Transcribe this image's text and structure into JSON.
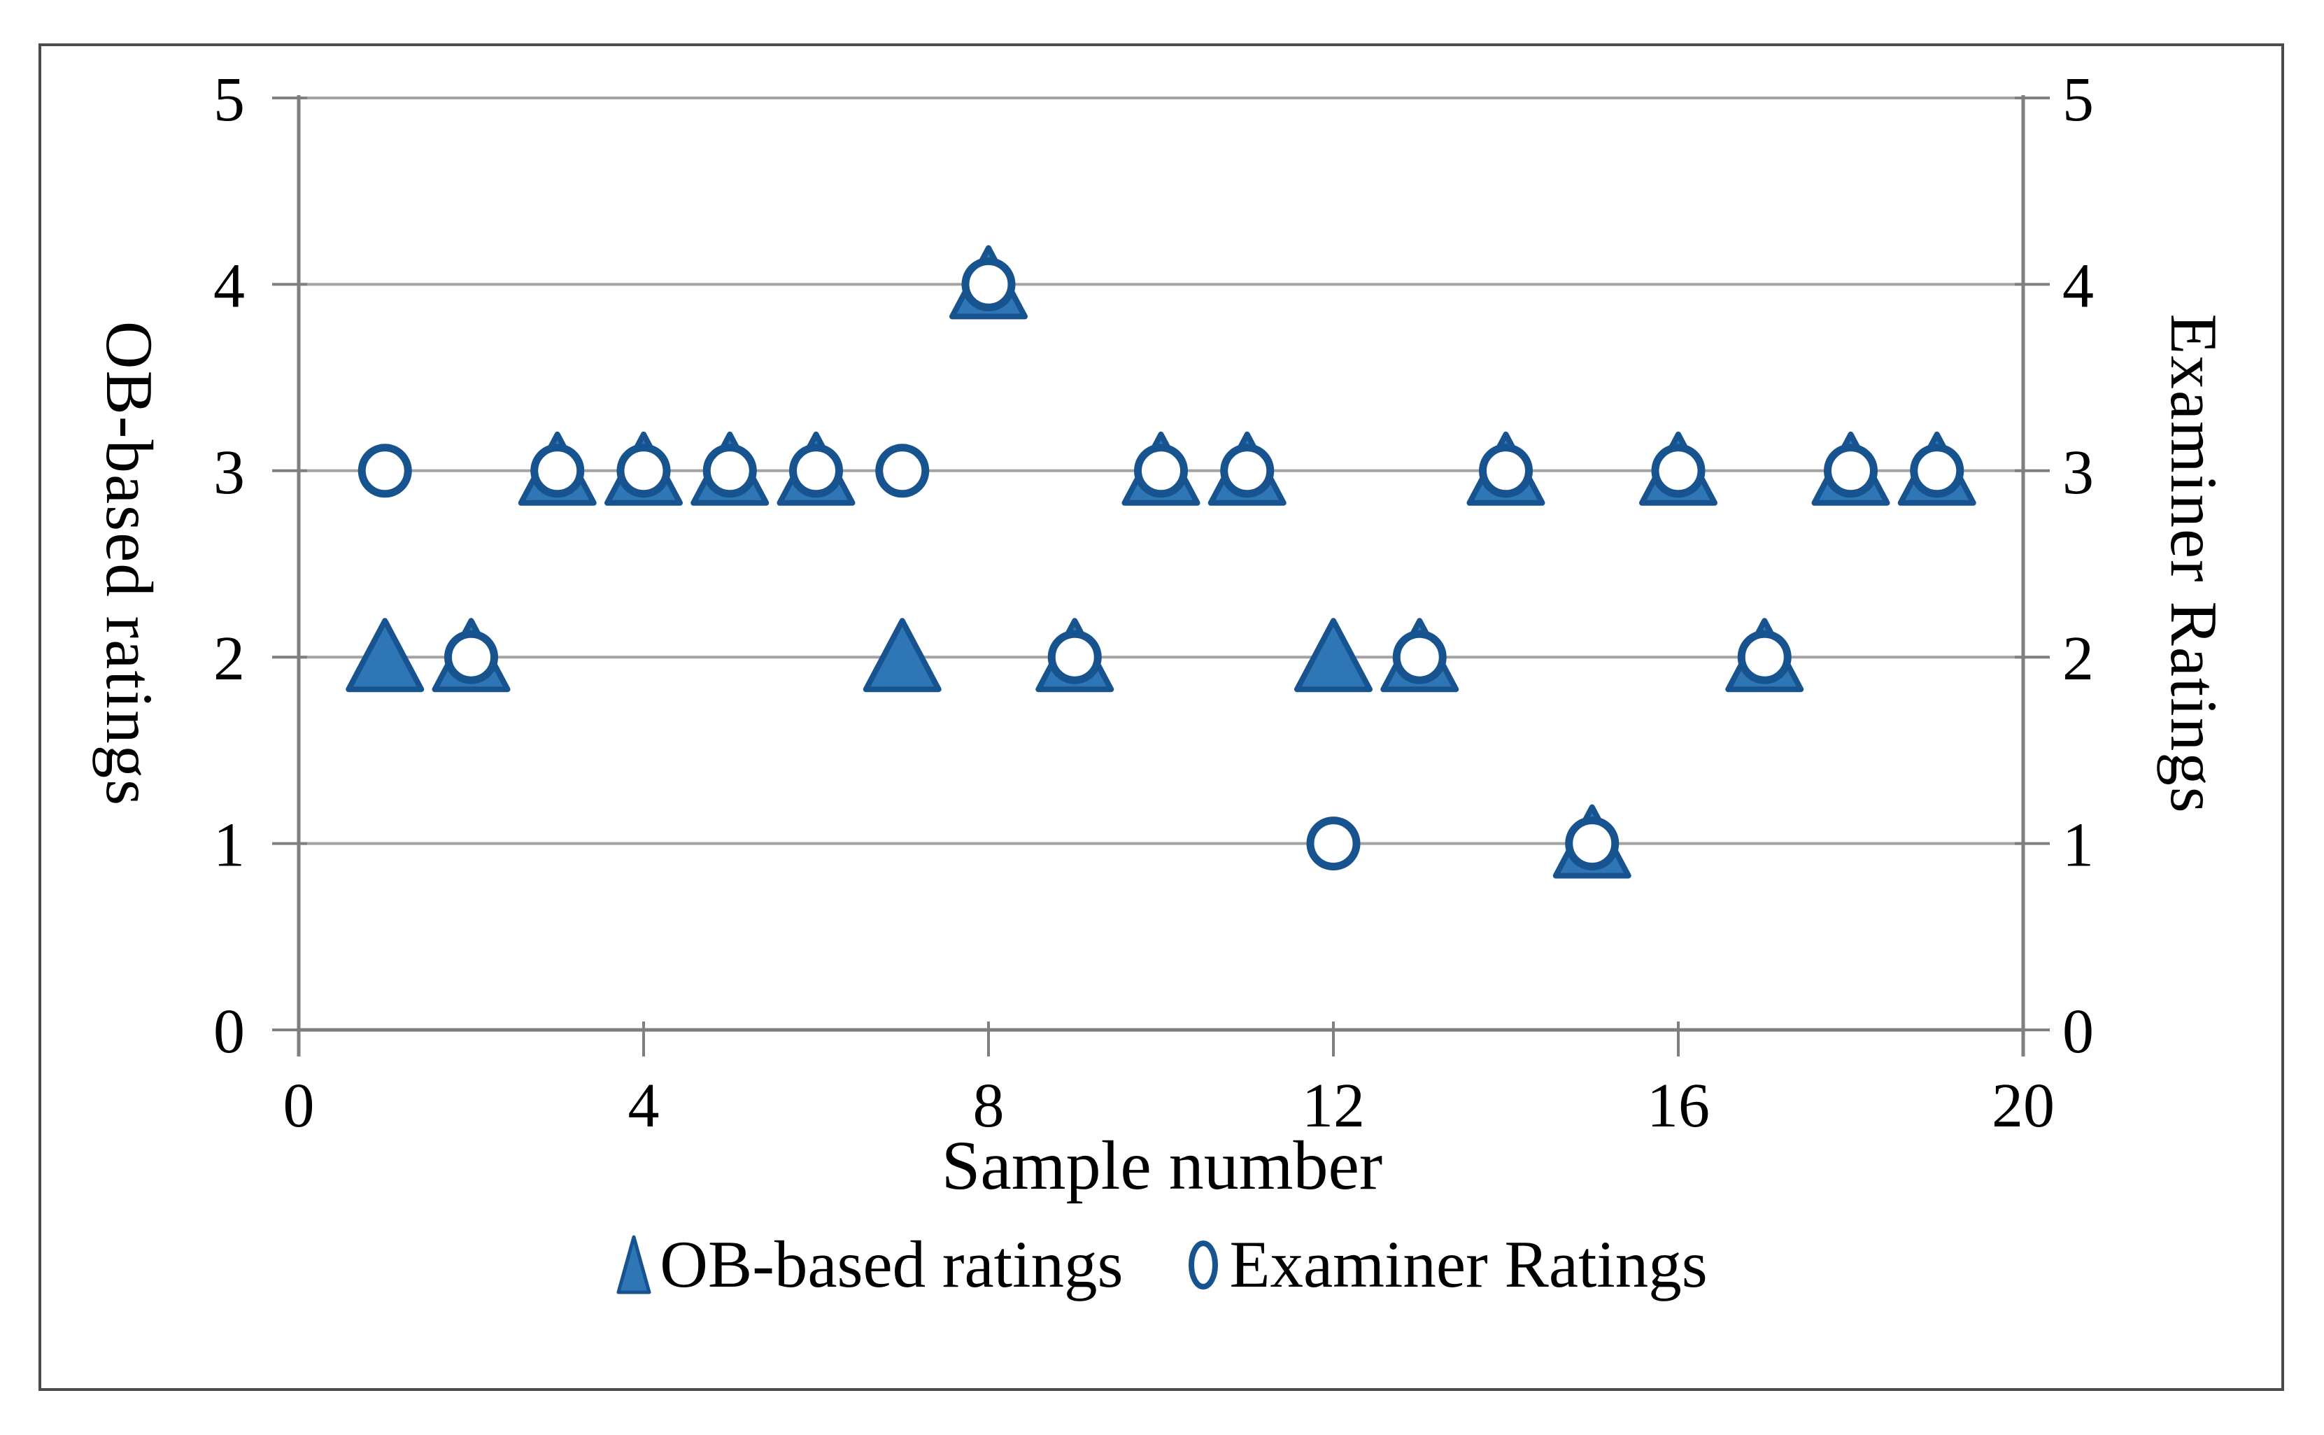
{
  "figure": {
    "background_color": "#FFFFFF",
    "border_color": "#4B4B4B"
  },
  "chart_data": {
    "type": "scatter",
    "title": "",
    "x_label": "Sample number",
    "y_label_left": "OB-based ratings",
    "y_label_right": "Examiner Ratings",
    "x": [
      1,
      2,
      3,
      4,
      5,
      6,
      7,
      8,
      9,
      10,
      11,
      12,
      13,
      14,
      15,
      16,
      17,
      18,
      19
    ],
    "series": [
      {
        "name": "OB-based ratings",
        "marker": "filled-triangle",
        "fill_color": "#2E76B5",
        "edge_color": "#17538F",
        "values": [
          2,
          2,
          3,
          3,
          3,
          3,
          2,
          4,
          2,
          3,
          3,
          2,
          2,
          3,
          1,
          3,
          2,
          3,
          3
        ]
      },
      {
        "name": "Examiner Ratings",
        "marker": "open-circle",
        "fill_color": "#FFFFFF",
        "edge_color": "#17538F",
        "values": [
          3,
          2,
          3,
          3,
          3,
          3,
          3,
          4,
          2,
          3,
          3,
          1,
          2,
          3,
          1,
          3,
          2,
          3,
          3
        ]
      }
    ],
    "xlim": [
      0,
      20
    ],
    "ylim": [
      0,
      5
    ],
    "x_ticks": [
      0,
      4,
      8,
      12,
      16,
      20
    ],
    "y_ticks": [
      0,
      1,
      2,
      3,
      4,
      5
    ],
    "grid": "horizontal",
    "gridline_color": "#A3A3A3",
    "axis_color": "#7F7F7F",
    "legend_position": "bottom"
  }
}
